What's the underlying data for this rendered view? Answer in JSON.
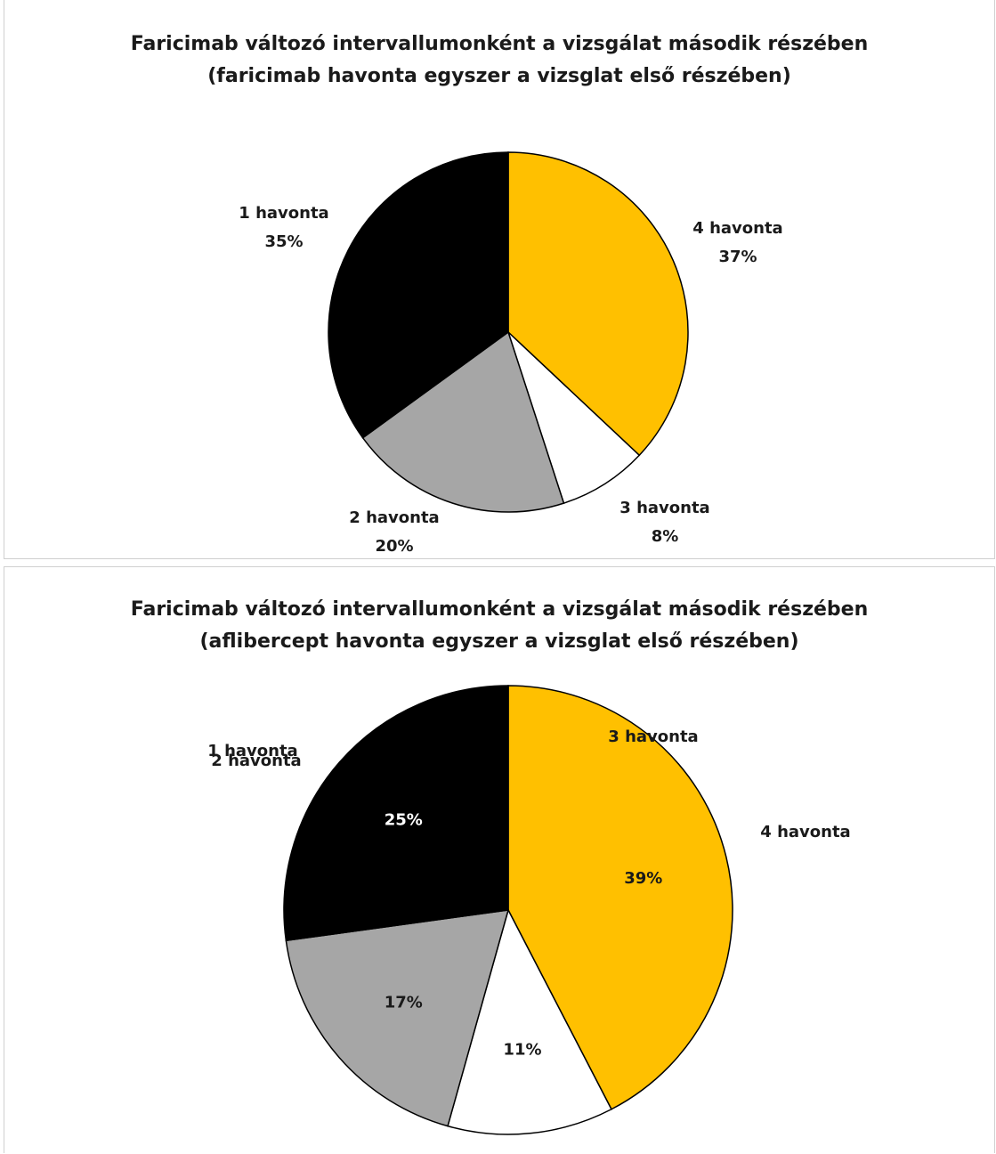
{
  "chart_data": [
    {
      "type": "pie",
      "title": "Faricimab változó intervallumonként a vizsgálat második részében",
      "subtitle": "(faricimab havonta egyszer a vizsglat első részében)",
      "slices": [
        {
          "name": "4 havonta",
          "value": 37,
          "value_label": "37%",
          "color": "#FFC000"
        },
        {
          "name": "3 havonta",
          "value": 8,
          "value_label": "8%",
          "color": "#FFFFFF"
        },
        {
          "name": "2 havonta",
          "value": 20,
          "value_label": "20%",
          "color": "#A6A6A6"
        },
        {
          "name": "1 havonta",
          "value": 35,
          "value_label": "35%",
          "color": "#000000"
        }
      ]
    },
    {
      "type": "pie",
      "title": "Faricimab változó intervallumonként a vizsgálat második részében",
      "subtitle": "(aflibercept havonta egyszer a vizsglat első részében)",
      "slices": [
        {
          "name": "4 havonta",
          "value": 39,
          "value_label": "39%",
          "color": "#FFC000"
        },
        {
          "name": "3 havonta",
          "value": 11,
          "value_label": "11%",
          "color": "#FFFFFF"
        },
        {
          "name": "2 havonta",
          "value": 17,
          "value_label": "17%",
          "color": "#A6A6A6"
        },
        {
          "name": "1 havonta",
          "value": 25,
          "value_label": "25%",
          "color": "#000000"
        }
      ]
    }
  ]
}
